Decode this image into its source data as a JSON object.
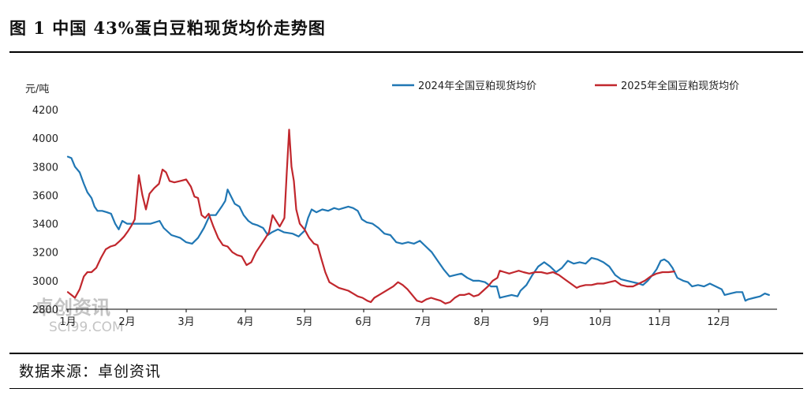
{
  "figure_title": "图 1  中国 43%蛋白豆粕现货均价走势图",
  "source_text": "数据来源：卓创资讯",
  "watermark": {
    "main": "卓创资讯",
    "sub": "SCI99.COM"
  },
  "colors": {
    "series_2024": "#2077b4",
    "series_2025": "#c1272d",
    "axis": "#000000"
  },
  "chart_data": {
    "type": "line",
    "ylabel": "元/吨",
    "ylim": [
      2800,
      4200
    ],
    "yticks": [
      2800,
      3000,
      3200,
      3400,
      3600,
      3800,
      4000,
      4200
    ],
    "xlim": [
      1,
      13
    ],
    "xticks": [
      {
        "label": "1月",
        "x": 1
      },
      {
        "label": "2月",
        "x": 2
      },
      {
        "label": "3月",
        "x": 3
      },
      {
        "label": "4月",
        "x": 4
      },
      {
        "label": "5月",
        "x": 5
      },
      {
        "label": "6月",
        "x": 6
      },
      {
        "label": "7月",
        "x": 7
      },
      {
        "label": "8月",
        "x": 8
      },
      {
        "label": "9月",
        "x": 9
      },
      {
        "label": "10月",
        "x": 10
      },
      {
        "label": "11月",
        "x": 11
      },
      {
        "label": "12月",
        "x": 12
      }
    ],
    "legend_position": "top-right",
    "grid": false,
    "series": [
      {
        "name": "2024年全国豆粕现货均价",
        "color": "#2077b4",
        "points": [
          [
            1.0,
            3870
          ],
          [
            1.06,
            3860
          ],
          [
            1.12,
            3800
          ],
          [
            1.2,
            3760
          ],
          [
            1.27,
            3680
          ],
          [
            1.33,
            3620
          ],
          [
            1.4,
            3580
          ],
          [
            1.45,
            3520
          ],
          [
            1.5,
            3490
          ],
          [
            1.58,
            3490
          ],
          [
            1.66,
            3480
          ],
          [
            1.73,
            3470
          ],
          [
            1.8,
            3400
          ],
          [
            1.86,
            3360
          ],
          [
            1.92,
            3420
          ],
          [
            2.0,
            3400
          ],
          [
            2.2,
            3400
          ],
          [
            2.4,
            3400
          ],
          [
            2.55,
            3420
          ],
          [
            2.62,
            3370
          ],
          [
            2.75,
            3320
          ],
          [
            2.9,
            3300
          ],
          [
            3.0,
            3270
          ],
          [
            3.1,
            3260
          ],
          [
            3.2,
            3300
          ],
          [
            3.3,
            3370
          ],
          [
            3.4,
            3460
          ],
          [
            3.5,
            3460
          ],
          [
            3.6,
            3520
          ],
          [
            3.66,
            3560
          ],
          [
            3.7,
            3640
          ],
          [
            3.76,
            3590
          ],
          [
            3.82,
            3540
          ],
          [
            3.9,
            3520
          ],
          [
            3.97,
            3460
          ],
          [
            4.05,
            3420
          ],
          [
            4.12,
            3400
          ],
          [
            4.2,
            3390
          ],
          [
            4.3,
            3370
          ],
          [
            4.38,
            3320
          ],
          [
            4.45,
            3340
          ],
          [
            4.55,
            3360
          ],
          [
            4.65,
            3340
          ],
          [
            4.8,
            3330
          ],
          [
            4.9,
            3310
          ],
          [
            5.0,
            3350
          ],
          [
            5.06,
            3440
          ],
          [
            5.12,
            3500
          ],
          [
            5.2,
            3480
          ],
          [
            5.3,
            3500
          ],
          [
            5.4,
            3490
          ],
          [
            5.5,
            3510
          ],
          [
            5.58,
            3500
          ],
          [
            5.66,
            3510
          ],
          [
            5.74,
            3520
          ],
          [
            5.82,
            3510
          ],
          [
            5.9,
            3490
          ],
          [
            5.97,
            3430
          ],
          [
            6.05,
            3410
          ],
          [
            6.15,
            3400
          ],
          [
            6.25,
            3370
          ],
          [
            6.35,
            3330
          ],
          [
            6.45,
            3320
          ],
          [
            6.55,
            3270
          ],
          [
            6.65,
            3260
          ],
          [
            6.75,
            3270
          ],
          [
            6.85,
            3260
          ],
          [
            6.95,
            3280
          ],
          [
            7.05,
            3240
          ],
          [
            7.15,
            3200
          ],
          [
            7.25,
            3140
          ],
          [
            7.35,
            3080
          ],
          [
            7.45,
            3030
          ],
          [
            7.55,
            3040
          ],
          [
            7.65,
            3050
          ],
          [
            7.75,
            3020
          ],
          [
            7.85,
            3000
          ],
          [
            7.95,
            3000
          ],
          [
            8.05,
            2990
          ],
          [
            8.15,
            2960
          ],
          [
            8.25,
            2960
          ],
          [
            8.3,
            2880
          ],
          [
            8.4,
            2890
          ],
          [
            8.5,
            2900
          ],
          [
            8.6,
            2890
          ],
          [
            8.65,
            2930
          ],
          [
            8.75,
            2970
          ],
          [
            8.85,
            3040
          ],
          [
            8.95,
            3100
          ],
          [
            9.05,
            3130
          ],
          [
            9.15,
            3100
          ],
          [
            9.25,
            3060
          ],
          [
            9.35,
            3090
          ],
          [
            9.45,
            3140
          ],
          [
            9.55,
            3120
          ],
          [
            9.65,
            3130
          ],
          [
            9.75,
            3120
          ],
          [
            9.85,
            3160
          ],
          [
            9.95,
            3150
          ],
          [
            10.05,
            3130
          ],
          [
            10.15,
            3100
          ],
          [
            10.25,
            3040
          ],
          [
            10.35,
            3010
          ],
          [
            10.45,
            3000
          ],
          [
            10.55,
            2990
          ],
          [
            10.65,
            2980
          ],
          [
            10.72,
            2970
          ],
          [
            10.8,
            3000
          ],
          [
            10.88,
            3040
          ],
          [
            10.95,
            3080
          ],
          [
            11.02,
            3140
          ],
          [
            11.08,
            3150
          ],
          [
            11.15,
            3130
          ],
          [
            11.22,
            3090
          ],
          [
            11.3,
            3020
          ],
          [
            11.4,
            3000
          ],
          [
            11.48,
            2990
          ],
          [
            11.55,
            2960
          ],
          [
            11.65,
            2970
          ],
          [
            11.75,
            2960
          ],
          [
            11.85,
            2980
          ],
          [
            11.95,
            2960
          ],
          [
            12.05,
            2940
          ],
          [
            12.1,
            2900
          ],
          [
            12.2,
            2910
          ],
          [
            12.3,
            2920
          ],
          [
            12.4,
            2920
          ],
          [
            12.45,
            2860
          ],
          [
            12.5,
            2870
          ],
          [
            12.6,
            2880
          ],
          [
            12.7,
            2890
          ],
          [
            12.78,
            2910
          ],
          [
            12.85,
            2900
          ]
        ]
      },
      {
        "name": "2025年全国豆粕现货均价",
        "color": "#c1272d",
        "points": [
          [
            1.0,
            2920
          ],
          [
            1.06,
            2900
          ],
          [
            1.12,
            2880
          ],
          [
            1.2,
            2940
          ],
          [
            1.27,
            3030
          ],
          [
            1.33,
            3060
          ],
          [
            1.4,
            3060
          ],
          [
            1.48,
            3090
          ],
          [
            1.56,
            3160
          ],
          [
            1.64,
            3220
          ],
          [
            1.72,
            3240
          ],
          [
            1.8,
            3250
          ],
          [
            1.88,
            3280
          ],
          [
            1.95,
            3310
          ],
          [
            2.02,
            3350
          ],
          [
            2.08,
            3390
          ],
          [
            2.13,
            3430
          ],
          [
            2.2,
            3740
          ],
          [
            2.26,
            3600
          ],
          [
            2.32,
            3500
          ],
          [
            2.38,
            3610
          ],
          [
            2.46,
            3650
          ],
          [
            2.54,
            3680
          ],
          [
            2.6,
            3780
          ],
          [
            2.66,
            3760
          ],
          [
            2.72,
            3700
          ],
          [
            2.8,
            3690
          ],
          [
            2.9,
            3700
          ],
          [
            3.0,
            3710
          ],
          [
            3.08,
            3660
          ],
          [
            3.14,
            3590
          ],
          [
            3.2,
            3580
          ],
          [
            3.26,
            3460
          ],
          [
            3.32,
            3440
          ],
          [
            3.38,
            3470
          ],
          [
            3.46,
            3380
          ],
          [
            3.54,
            3300
          ],
          [
            3.62,
            3250
          ],
          [
            3.7,
            3240
          ],
          [
            3.78,
            3200
          ],
          [
            3.86,
            3180
          ],
          [
            3.94,
            3170
          ],
          [
            4.02,
            3110
          ],
          [
            4.1,
            3130
          ],
          [
            4.18,
            3200
          ],
          [
            4.26,
            3250
          ],
          [
            4.34,
            3300
          ],
          [
            4.4,
            3340
          ],
          [
            4.46,
            3460
          ],
          [
            4.52,
            3420
          ],
          [
            4.58,
            3380
          ],
          [
            4.62,
            3410
          ],
          [
            4.66,
            3440
          ],
          [
            4.7,
            3760
          ],
          [
            4.74,
            4060
          ],
          [
            4.78,
            3800
          ],
          [
            4.82,
            3700
          ],
          [
            4.86,
            3500
          ],
          [
            4.92,
            3400
          ],
          [
            5.0,
            3360
          ],
          [
            5.08,
            3300
          ],
          [
            5.16,
            3260
          ],
          [
            5.22,
            3250
          ],
          [
            5.28,
            3160
          ],
          [
            5.35,
            3060
          ],
          [
            5.42,
            2990
          ],
          [
            5.5,
            2970
          ],
          [
            5.58,
            2950
          ],
          [
            5.66,
            2940
          ],
          [
            5.74,
            2930
          ],
          [
            5.82,
            2910
          ],
          [
            5.9,
            2890
          ],
          [
            5.98,
            2880
          ],
          [
            6.06,
            2860
          ],
          [
            6.12,
            2850
          ],
          [
            6.18,
            2880
          ],
          [
            6.26,
            2900
          ],
          [
            6.34,
            2920
          ],
          [
            6.42,
            2940
          ],
          [
            6.5,
            2960
          ],
          [
            6.58,
            2990
          ],
          [
            6.66,
            2970
          ],
          [
            6.74,
            2940
          ],
          [
            6.82,
            2900
          ],
          [
            6.9,
            2860
          ],
          [
            6.98,
            2850
          ],
          [
            7.06,
            2870
          ],
          [
            7.14,
            2880
          ],
          [
            7.22,
            2870
          ],
          [
            7.3,
            2860
          ],
          [
            7.38,
            2840
          ],
          [
            7.46,
            2850
          ],
          [
            7.54,
            2880
          ],
          [
            7.62,
            2900
          ],
          [
            7.7,
            2900
          ],
          [
            7.78,
            2910
          ],
          [
            7.86,
            2890
          ],
          [
            7.94,
            2900
          ],
          [
            8.02,
            2930
          ],
          [
            8.1,
            2960
          ],
          [
            8.18,
            3000
          ],
          [
            8.26,
            3020
          ],
          [
            8.3,
            3070
          ],
          [
            8.38,
            3060
          ],
          [
            8.46,
            3050
          ],
          [
            8.54,
            3060
          ],
          [
            8.62,
            3070
          ],
          [
            8.7,
            3060
          ],
          [
            8.8,
            3050
          ],
          [
            8.9,
            3060
          ],
          [
            9.0,
            3060
          ],
          [
            9.1,
            3050
          ],
          [
            9.2,
            3060
          ],
          [
            9.3,
            3040
          ],
          [
            9.4,
            3010
          ],
          [
            9.5,
            2980
          ],
          [
            9.6,
            2950
          ],
          [
            9.65,
            2960
          ],
          [
            9.75,
            2970
          ],
          [
            9.85,
            2970
          ],
          [
            9.95,
            2980
          ],
          [
            10.05,
            2980
          ],
          [
            10.15,
            2990
          ],
          [
            10.25,
            3000
          ],
          [
            10.35,
            2970
          ],
          [
            10.45,
            2960
          ],
          [
            10.55,
            2960
          ],
          [
            10.65,
            2980
          ],
          [
            10.75,
            3000
          ],
          [
            10.85,
            3030
          ],
          [
            10.95,
            3050
          ],
          [
            11.05,
            3060
          ],
          [
            11.15,
            3060
          ],
          [
            11.25,
            3065
          ]
        ]
      }
    ]
  }
}
